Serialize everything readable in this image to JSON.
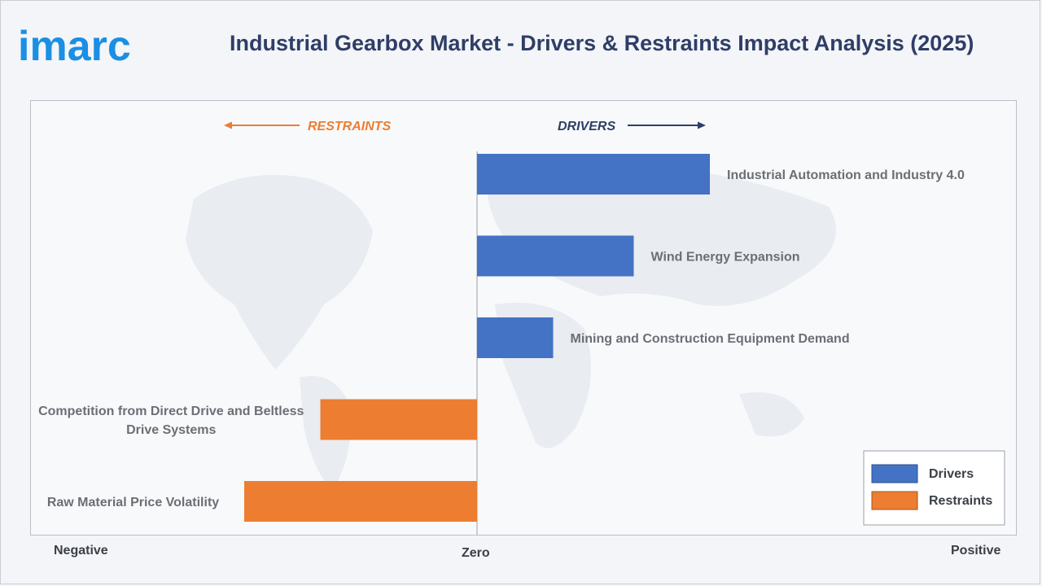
{
  "header": {
    "brand_name": "imarc",
    "title": "Industrial Gearbox Market - Drivers & Restraints Impact Analysis (2025)"
  },
  "colors": {
    "drivers": "#4472c4",
    "restraints": "#ed7d31",
    "brand": "#1a8fe3",
    "title": "#2f3e66"
  },
  "chart_data": {
    "type": "bar",
    "orientation": "horizontal",
    "direction_labels": {
      "restraints": "RESTRAINTS",
      "drivers": "DRIVERS"
    },
    "axis_labels": {
      "negative": "Negative",
      "zero": "Zero",
      "positive": "Positive"
    },
    "xlim": [
      -1,
      1
    ],
    "grid": false,
    "legend_position": "bottom-right",
    "series": [
      {
        "name": "Drivers",
        "color": "#4472c4"
      },
      {
        "name": "Restraints",
        "color": "#ed7d31"
      }
    ],
    "bars": [
      {
        "label": "Industrial Automation and Industry 4.0",
        "series": "Drivers",
        "value": 0.52
      },
      {
        "label": "Wind Energy Expansion",
        "series": "Drivers",
        "value": 0.35
      },
      {
        "label": "Mining and Construction Equipment Demand",
        "series": "Drivers",
        "value": 0.17
      },
      {
        "label": "Competition from Direct Drive and Beltless Drive Systems",
        "series": "Restraints",
        "value": -0.35,
        "label_lines": [
          "Competition from Direct Drive and Beltless",
          "Drive Systems"
        ]
      },
      {
        "label": "Raw Material Price Volatility",
        "series": "Restraints",
        "value": -0.52
      }
    ]
  }
}
